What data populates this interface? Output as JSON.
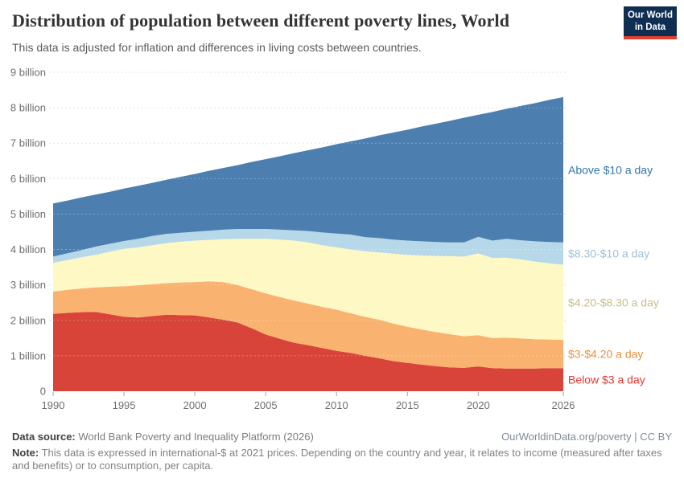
{
  "header": {
    "title": "Distribution of population between different poverty lines, World",
    "subtitle": "This data is adjusted for inflation and differences in living costs between countries."
  },
  "logo": {
    "line1": "Our World",
    "line2": "in Data",
    "bg_color": "#0f2e51",
    "bar_color": "#e1402f"
  },
  "chart_data": {
    "type": "area",
    "stacked": true,
    "title": "Distribution of population between different poverty lines, World",
    "xlabel": "",
    "ylabel": "",
    "grid": "horizontal-dashed",
    "legend_position": "right-inline",
    "ylim": [
      0,
      9
    ],
    "yticks": [
      {
        "value": 0,
        "label": "0"
      },
      {
        "value": 1,
        "label": "1 billion"
      },
      {
        "value": 2,
        "label": "2 billion"
      },
      {
        "value": 3,
        "label": "3 billion"
      },
      {
        "value": 4,
        "label": "4 billion"
      },
      {
        "value": 5,
        "label": "5 billion"
      },
      {
        "value": 6,
        "label": "6 billion"
      },
      {
        "value": 7,
        "label": "7 billion"
      },
      {
        "value": 8,
        "label": "8 billion"
      },
      {
        "value": 9,
        "label": "9 billion"
      }
    ],
    "xticks": [
      1990,
      1995,
      2000,
      2005,
      2010,
      2015,
      2020,
      2026
    ],
    "x": [
      1990,
      1991,
      1992,
      1993,
      1994,
      1995,
      1996,
      1997,
      1998,
      1999,
      2000,
      2001,
      2002,
      2003,
      2004,
      2005,
      2006,
      2007,
      2008,
      2009,
      2010,
      2011,
      2012,
      2013,
      2014,
      2015,
      2016,
      2017,
      2018,
      2019,
      2020,
      2021,
      2022,
      2023,
      2024,
      2025,
      2026
    ],
    "unit": "billion people",
    "series": [
      {
        "name": "Below $3 a day",
        "color": "#d8433a",
        "label_color": "#e23a2e",
        "values": [
          2.18,
          2.21,
          2.23,
          2.24,
          2.17,
          2.1,
          2.08,
          2.12,
          2.16,
          2.15,
          2.14,
          2.08,
          2.02,
          1.94,
          1.78,
          1.6,
          1.48,
          1.37,
          1.3,
          1.22,
          1.14,
          1.08,
          1.0,
          0.93,
          0.85,
          0.8,
          0.75,
          0.71,
          0.67,
          0.66,
          0.7,
          0.65,
          0.64,
          0.64,
          0.64,
          0.65,
          0.65
        ]
      },
      {
        "name": "$3-$4.20 a day",
        "color": "#f9b26f",
        "label_color": "#e8913f",
        "values": [
          0.63,
          0.65,
          0.67,
          0.69,
          0.78,
          0.86,
          0.91,
          0.9,
          0.89,
          0.92,
          0.94,
          1.02,
          1.06,
          1.06,
          1.1,
          1.16,
          1.18,
          1.19,
          1.17,
          1.16,
          1.16,
          1.12,
          1.1,
          1.09,
          1.06,
          1.02,
          0.99,
          0.96,
          0.94,
          0.89,
          0.88,
          0.85,
          0.87,
          0.85,
          0.83,
          0.81,
          0.8
        ]
      },
      {
        "name": "$4.20-$8.30 a day",
        "color": "#fdf8c4",
        "label_color": "#c6c088",
        "values": [
          0.81,
          0.84,
          0.88,
          0.92,
          0.99,
          1.06,
          1.07,
          1.1,
          1.13,
          1.15,
          1.17,
          1.17,
          1.21,
          1.3,
          1.42,
          1.54,
          1.62,
          1.69,
          1.73,
          1.74,
          1.76,
          1.8,
          1.85,
          1.9,
          1.97,
          2.03,
          2.09,
          2.15,
          2.2,
          2.25,
          2.31,
          2.26,
          2.26,
          2.23,
          2.19,
          2.15,
          2.12
        ]
      },
      {
        "name": "$8.30-$10 a day",
        "color": "#b6d8e8",
        "label_color": "#9cc2d8",
        "values": [
          0.18,
          0.19,
          0.2,
          0.23,
          0.22,
          0.22,
          0.24,
          0.26,
          0.26,
          0.25,
          0.25,
          0.26,
          0.27,
          0.28,
          0.28,
          0.28,
          0.28,
          0.29,
          0.32,
          0.36,
          0.39,
          0.42,
          0.4,
          0.4,
          0.4,
          0.4,
          0.4,
          0.39,
          0.39,
          0.4,
          0.47,
          0.49,
          0.53,
          0.54,
          0.57,
          0.6,
          0.63
        ]
      },
      {
        "name": "Above $10 a day",
        "color": "#4c7fb0",
        "label_color": "#3077ad",
        "values": [
          1.5,
          1.49,
          1.49,
          1.47,
          1.47,
          1.48,
          1.5,
          1.5,
          1.53,
          1.58,
          1.63,
          1.69,
          1.74,
          1.8,
          1.89,
          1.97,
          2.07,
          2.18,
          2.28,
          2.4,
          2.52,
          2.63,
          2.78,
          2.9,
          3.02,
          3.13,
          3.24,
          3.34,
          3.43,
          3.52,
          3.44,
          3.63,
          3.67,
          3.79,
          3.9,
          4.01,
          4.1
        ]
      }
    ]
  },
  "footer": {
    "source_label": "Data source:",
    "source_text": " World Bank Poverty and Inequality Platform (2026)",
    "link": "OurWorldinData.org/poverty | CC BY",
    "note_label": "Note:",
    "note_text": " This data is expressed in international-$ at 2021 prices. Depending on the country and year, it relates to income (measured after taxes and benefits) or to consumption, per capita."
  }
}
